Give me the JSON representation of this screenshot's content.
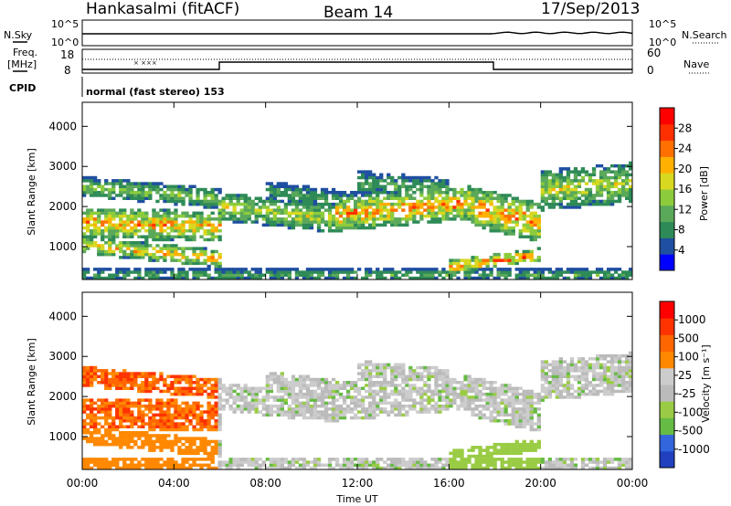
{
  "header": {
    "station": "Hankasalmi (fitACF)",
    "beam": "Beam 14",
    "date": "17/Sep/2013"
  },
  "noise_panel": {
    "left_label": "N.Sky",
    "right_label": "N.Search",
    "left_ticks": [
      "10^5",
      "10^0"
    ],
    "right_ticks": [
      "10^5",
      "10^0"
    ]
  },
  "freq_panel": {
    "left_label_1": "Freq.",
    "left_label_2": "[MHz]",
    "right_label": "Nave",
    "left_ticks": [
      "18",
      "8"
    ],
    "right_ticks": [
      "60",
      "0"
    ]
  },
  "cpid_panel": {
    "label": "CPID",
    "text": "normal (fast stereo) 153"
  },
  "colors": {
    "power": [
      "#0000ff",
      "#1f4fa0",
      "#2e8b57",
      "#5aa85a",
      "#8ccc3c",
      "#d8d820",
      "#ffb000",
      "#ff7000",
      "#ff3000",
      "#ff0000"
    ],
    "velocity": [
      "#2040c0",
      "#3366dd",
      "#66bb44",
      "#99cc44",
      "#bbbbbb",
      "#cccccc",
      "#ff8800",
      "#ff6600",
      "#ff3300",
      "#ff0000"
    ]
  },
  "chart_data": [
    {
      "type": "heatmap",
      "title": "",
      "xlabel": "",
      "ylabel": "Slant Range [km]",
      "x_ticks": [
        "00:00",
        "04:00",
        "08:00",
        "12:00",
        "16:00",
        "20:00",
        "00:00"
      ],
      "xlim_hours": [
        0,
        24
      ],
      "y_ticks": [
        1000,
        2000,
        3000,
        4000
      ],
      "ylim": [
        180,
        4600
      ],
      "colorbar": {
        "label": "Power [dB]",
        "ticks": [
          4,
          8,
          12,
          16,
          20,
          24,
          28
        ],
        "range": [
          0,
          30
        ]
      }
    },
    {
      "type": "heatmap",
      "title": "",
      "xlabel": "Time UT",
      "ylabel": "Slant Range [km]",
      "x_ticks": [
        "00:00",
        "04:00",
        "08:00",
        "12:00",
        "16:00",
        "20:00",
        "00:00"
      ],
      "xlim_hours": [
        0,
        24
      ],
      "y_ticks": [
        1000,
        2000,
        3000,
        4000
      ],
      "ylim": [
        180,
        4600
      ],
      "colorbar": {
        "label": "Velocity [m s⁻¹]",
        "ticks": [
          "1000",
          "500",
          "100",
          "25",
          "-25",
          "-100",
          "-500",
          "-1000"
        ]
      }
    }
  ]
}
